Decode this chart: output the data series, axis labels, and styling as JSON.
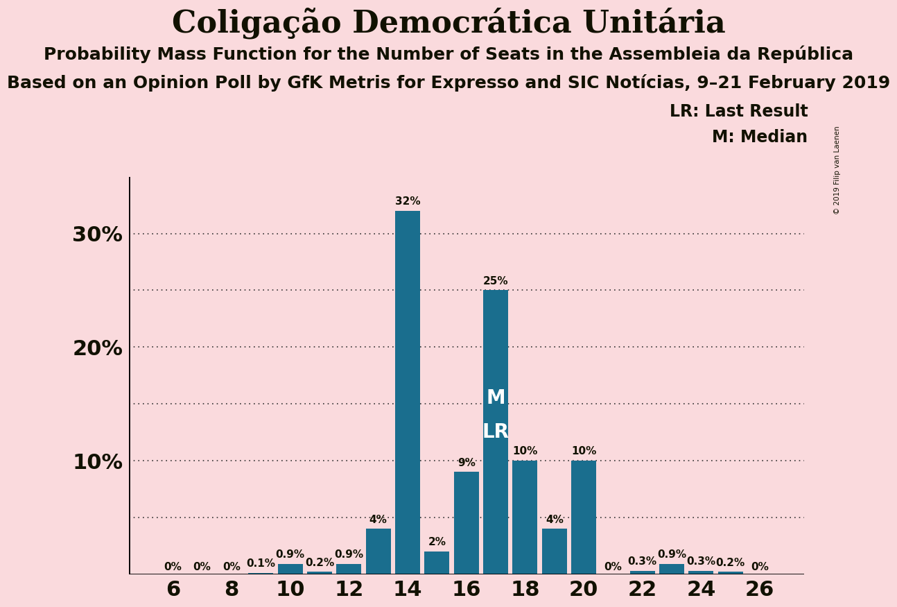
{
  "title": "Coligação Democrática Unitária",
  "subtitle1": "Probability Mass Function for the Number of Seats in the Assembleia da República",
  "subtitle2": "Based on an Opinion Poll by GfK Metris for Expresso and SIC Notícias, 9–21 February 2019",
  "copyright": "© 2019 Filip van Laenen",
  "background_color": "#fadadd",
  "bar_color": "#1a6e8e",
  "seats": [
    6,
    7,
    8,
    9,
    10,
    11,
    12,
    13,
    14,
    15,
    16,
    17,
    18,
    19,
    20,
    21,
    22,
    23,
    24,
    25,
    26
  ],
  "probabilities": [
    0.0,
    0.0,
    0.0,
    0.1,
    0.9,
    0.2,
    0.9,
    4.0,
    32.0,
    2.0,
    9.0,
    25.0,
    10.0,
    4.0,
    10.0,
    0.0,
    0.3,
    0.9,
    0.3,
    0.2,
    0.0
  ],
  "labels": [
    "0%",
    "0%",
    "0%",
    "0.1%",
    "0.9%",
    "0.2%",
    "0.9%",
    "4%",
    "32%",
    "2%",
    "9%",
    "25%",
    "10%",
    "4%",
    "10%",
    "0%",
    "0.3%",
    "0.9%",
    "0.3%",
    "0.2%",
    "0%"
  ],
  "median_seat": 17,
  "last_result_seat": 17,
  "yticks": [
    0,
    5,
    10,
    15,
    20,
    25,
    30,
    35
  ],
  "ytick_labels": [
    "",
    "",
    "10%",
    "",
    "20%",
    "",
    "30%",
    ""
  ],
  "ylim": [
    0,
    35
  ],
  "xlabel_seats": [
    6,
    8,
    10,
    12,
    14,
    16,
    18,
    20,
    22,
    24,
    26
  ],
  "grid_lines": [
    5,
    10,
    15,
    20,
    25,
    30
  ],
  "lr_label": "LR: Last Result",
  "m_label": "M: Median",
  "title_fontsize": 32,
  "subtitle_fontsize": 18,
  "axis_label_fontsize": 22
}
